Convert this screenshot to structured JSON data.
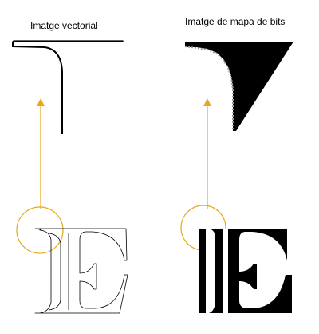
{
  "panels": {
    "vector": {
      "title": "Imatge vectorial"
    },
    "bitmap": {
      "title": "Imatge de mapa de bits"
    }
  },
  "colors": {
    "accent": "#e6a817",
    "ink": "#000000",
    "background": "#ffffff"
  },
  "letter": "E"
}
